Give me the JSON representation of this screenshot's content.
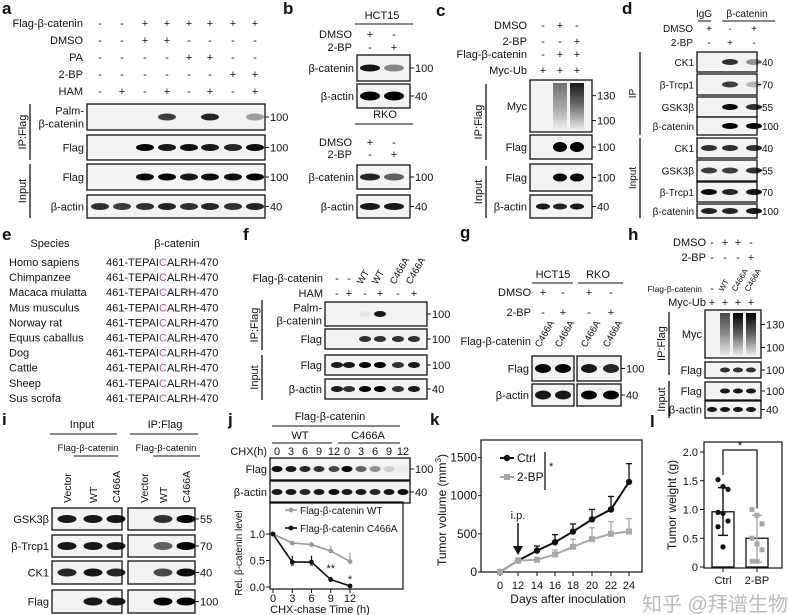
{
  "panels": {
    "a": {
      "label": "a",
      "conditions": [
        {
          "name": "Flag-β-catenin",
          "signs": [
            "-",
            "-",
            "+",
            "+",
            "+",
            "+",
            "+",
            "+"
          ]
        },
        {
          "name": "DMSO",
          "signs": [
            "-",
            "-",
            "+",
            "+",
            "-",
            "-",
            "-",
            "-"
          ]
        },
        {
          "name": "PA",
          "signs": [
            "-",
            "-",
            "-",
            "-",
            "+",
            "+",
            "-",
            "-"
          ]
        },
        {
          "name": "2-BP",
          "signs": [
            "-",
            "-",
            "-",
            "-",
            "-",
            "-",
            "+",
            "+"
          ]
        },
        {
          "name": "HAM",
          "signs": [
            "-",
            "+",
            "-",
            "+",
            "-",
            "+",
            "-",
            "+"
          ]
        }
      ],
      "groups": [
        "IP:Flag",
        "Input"
      ],
      "blots": [
        {
          "label": [
            "Palm-",
            "β-catenin"
          ],
          "marker": "100",
          "bands": [
            0,
            0,
            0,
            0.75,
            0,
            0.85,
            0,
            0.35
          ]
        },
        {
          "label": [
            "Flag"
          ],
          "marker": "100",
          "bands": [
            0,
            0,
            1,
            0.9,
            0.95,
            0.9,
            0.85,
            0.95
          ]
        },
        {
          "label": [
            "Flag"
          ],
          "marker": "100",
          "bands": [
            0,
            0,
            0.95,
            1,
            0.9,
            0.95,
            0.95,
            1
          ]
        },
        {
          "label": [
            "β-actin"
          ],
          "marker": "40",
          "bands": [
            0.8,
            0.75,
            0.8,
            0.85,
            0.8,
            0.85,
            0.8,
            0.85
          ]
        }
      ]
    },
    "b": {
      "label": "b",
      "cells": [
        {
          "header": "HCT15",
          "conditions": [
            {
              "name": "DMSO",
              "signs": [
                "+",
                "-"
              ]
            },
            {
              "name": "2-BP",
              "signs": [
                "-",
                "+"
              ]
            }
          ],
          "blots": [
            {
              "label": [
                "β-catenin"
              ],
              "marker": "100",
              "bands": [
                0.9,
                0.45
              ]
            },
            {
              "label": [
                "β-actin"
              ],
              "marker": "40",
              "bands": [
                1,
                1
              ]
            }
          ]
        },
        {
          "header": "RKO",
          "conditions": [
            {
              "name": "DMSO",
              "signs": [
                "+",
                "-"
              ]
            },
            {
              "name": "2-BP",
              "signs": [
                "-",
                "+"
              ]
            }
          ],
          "blots": [
            {
              "label": [
                "β-catenin"
              ],
              "marker": "100",
              "bands": [
                0.85,
                0.6
              ]
            },
            {
              "label": [
                "β-actin"
              ],
              "marker": "40",
              "bands": [
                0.9,
                0.9
              ]
            }
          ]
        }
      ]
    },
    "c": {
      "label": "c",
      "conditions": [
        {
          "name": "DMSO",
          "signs": [
            "-",
            "+",
            "-"
          ]
        },
        {
          "name": "2-BP",
          "signs": [
            "-",
            "-",
            "+"
          ]
        },
        {
          "name": "Flag-β-catenin",
          "signs": [
            "-",
            "+",
            "+"
          ]
        },
        {
          "name": "Myc-Ub",
          "signs": [
            "+",
            "+",
            "+"
          ]
        }
      ],
      "groups": [
        "IP:Flag",
        "Input"
      ],
      "blots": [
        {
          "label": [
            "Myc"
          ],
          "markers": [
            "130",
            "100"
          ],
          "smear": [
            0,
            0.55,
            0.9
          ]
        },
        {
          "label": [
            "Flag"
          ],
          "marker": "100",
          "bands": [
            0,
            1,
            1
          ]
        },
        {
          "label": [
            "Flag"
          ],
          "marker": "100",
          "bands": [
            0,
            1,
            1
          ]
        },
        {
          "label": [
            "β-actin"
          ],
          "marker": "40",
          "bands": [
            0.9,
            0.85,
            0.9
          ]
        }
      ]
    },
    "d": {
      "label": "d",
      "headers": [
        "IgG",
        "β-catenin"
      ],
      "conditions": [
        {
          "name": "DMSO",
          "signs": [
            "+",
            "-",
            "+"
          ]
        },
        {
          "name": "2-BP",
          "signs": [
            "-",
            "+",
            "-"
          ]
        }
      ],
      "groups": [
        "IP",
        "Input"
      ],
      "blots": [
        {
          "label": [
            "CK1"
          ],
          "marker": "40",
          "bands": [
            0,
            0.8,
            0.4
          ]
        },
        {
          "label": [
            "β-Trcp1"
          ],
          "marker": "70",
          "bands": [
            0,
            0.75,
            0.25
          ]
        },
        {
          "label": [
            "GSK3β"
          ],
          "marker": "55",
          "bands": [
            0,
            1,
            0.8
          ]
        },
        {
          "label": [
            "β-catenin"
          ],
          "marker": "100",
          "bands": [
            0,
            1,
            1
          ]
        },
        {
          "label": [
            "CK1"
          ],
          "marker": "40",
          "bands": [
            0.8,
            0.8,
            0.8
          ]
        },
        {
          "label": [
            "GSK3β"
          ],
          "marker": "55",
          "bands": [
            0.75,
            0.75,
            0.8
          ]
        },
        {
          "label": [
            "β-Trcp1"
          ],
          "marker": "70",
          "bands": [
            0.95,
            0.85,
            0.9
          ]
        },
        {
          "label": [
            "β-catenin"
          ],
          "marker": "100",
          "bands": [
            0.85,
            0.85,
            0.9
          ]
        }
      ]
    },
    "e": {
      "label": "e",
      "headers": [
        "Species",
        "β-catenin"
      ],
      "highlight_color": "#c0509a",
      "rows": [
        {
          "species": "Homo sapiens",
          "prefix": "461-TEPAI",
          "residue": "C",
          "suffix": "ALRH-470"
        },
        {
          "species": "Chimpanzee",
          "prefix": "461-TEPAI",
          "residue": "C",
          "suffix": "ALRH-470"
        },
        {
          "species": "Macaca mulatta",
          "prefix": "461-TEPAI",
          "residue": "C",
          "suffix": "ALRH-470"
        },
        {
          "species": "Mus musculus",
          "prefix": "461-TEPAI",
          "residue": "C",
          "suffix": "ALRH-470"
        },
        {
          "species": "Norway rat",
          "prefix": "461-TEPAI",
          "residue": "C",
          "suffix": "ALRH-470"
        },
        {
          "species": "Equus caballus",
          "prefix": "461-TEPAI",
          "residue": "C",
          "suffix": "ALRH-470"
        },
        {
          "species": "Dog",
          "prefix": "461-TEPAI",
          "residue": "C",
          "suffix": "ALRH-470"
        },
        {
          "species": "Cattle",
          "prefix": "461-TEPAI",
          "residue": "C",
          "suffix": "ALRH-470"
        },
        {
          "species": "Sheep",
          "prefix": "461-TEPAI",
          "residue": "C",
          "suffix": "ALRH-470"
        },
        {
          "species": "Sus scrofa",
          "prefix": "461-TEPAI",
          "residue": "C",
          "suffix": "ALRH-470"
        }
      ]
    },
    "f": {
      "label": "f",
      "conditions": [
        {
          "name": "Flag-β-catenin",
          "signs": [
            "-",
            "-",
            "WT",
            "WT",
            "C466A",
            "C466A"
          ]
        },
        {
          "name": "HAM",
          "signs": [
            "-",
            "+",
            "-",
            "+",
            "-",
            "+"
          ]
        }
      ],
      "groups": [
        "IP:Flag",
        "Input"
      ],
      "blots": [
        {
          "label": [
            "Palm-",
            "β-catenin"
          ],
          "marker": "100",
          "bands": [
            0,
            0,
            0.05,
            0.9,
            0,
            0
          ]
        },
        {
          "label": [
            "Flag"
          ],
          "marker": "100",
          "bands": [
            0,
            0,
            0.8,
            0.8,
            0.8,
            0.8
          ]
        },
        {
          "label": [
            "Flag"
          ],
          "marker": "100",
          "bands": [
            0.9,
            0.9,
            1,
            1,
            0.8,
            0.9
          ]
        },
        {
          "label": [
            "β-actin"
          ],
          "marker": "40",
          "bands": [
            0.9,
            0.8,
            1,
            1,
            0.8,
            0.9
          ]
        }
      ]
    },
    "g": {
      "label": "g",
      "headers": [
        "HCT15",
        "RKO"
      ],
      "conditions": [
        {
          "name": "DMSO",
          "signs": [
            "+",
            "-",
            "+",
            "-"
          ]
        },
        {
          "name": "2-BP",
          "signs": [
            "-",
            "+",
            "-",
            "+"
          ]
        },
        {
          "name": "Flag-β-catenin",
          "signs": [
            "C466A",
            "C466A",
            "C466A",
            "C466A"
          ]
        }
      ],
      "blots": [
        {
          "label": [
            "Flag"
          ],
          "marker": "100",
          "bands": [
            1,
            1,
            0.9,
            0.85
          ]
        },
        {
          "label": [
            "β-actin"
          ],
          "marker": "40",
          "bands": [
            0.9,
            0.9,
            1,
            1
          ]
        }
      ]
    },
    "h": {
      "label": "h",
      "conditions": [
        {
          "name": "DMSO",
          "signs": [
            "-",
            "+",
            "+",
            "-"
          ]
        },
        {
          "name": "2-BP",
          "signs": [
            "-",
            "-",
            "-",
            "+"
          ]
        },
        {
          "name": "Flag-β-catenin",
          "signs": [
            "-",
            "WT",
            "C466A",
            "C466A"
          ]
        },
        {
          "name": "Myc-Ub",
          "signs": [
            "+",
            "+",
            "+",
            "+"
          ]
        }
      ],
      "groups": [
        "IP:Flag",
        "Input"
      ],
      "blots": [
        {
          "label": [
            "Myc"
          ],
          "markers": [
            "130",
            "100"
          ],
          "smear": [
            0,
            0.7,
            1,
            1
          ]
        },
        {
          "label": [
            "Flag"
          ],
          "marker": "100",
          "bands": [
            0,
            0.8,
            0.8,
            0.8
          ]
        },
        {
          "label": [
            "Flag"
          ],
          "marker": "100",
          "bands": [
            0,
            0.9,
            0.9,
            0.9
          ]
        },
        {
          "label": [
            "β-actin"
          ],
          "marker": "40",
          "bands": [
            0.9,
            0.9,
            0.9,
            0.9
          ]
        }
      ]
    },
    "i": {
      "label": "i",
      "headers": [
        "Input",
        "IP:Flag"
      ],
      "subheaders": [
        "Flag-β-catenin",
        "Flag-β-catenin"
      ],
      "lanes": [
        "Vector",
        "WT",
        "C466A",
        "Vector",
        "WT",
        "C466A"
      ],
      "blots": [
        {
          "label": [
            "GSK3β"
          ],
          "marker": "55",
          "bands": [
            0.9,
            0.9,
            0.9,
            0,
            0.8,
            1
          ]
        },
        {
          "label": [
            "β-Trcp1"
          ],
          "marker": "70",
          "bands": [
            0.9,
            0.9,
            0.9,
            0,
            0.6,
            1
          ]
        },
        {
          "label": [
            "CK1"
          ],
          "marker": "40",
          "bands": [
            0.85,
            0.9,
            0.85,
            0,
            0.7,
            0.95
          ]
        },
        {
          "label": [
            "Flag"
          ],
          "marker": "100",
          "bands": [
            0,
            0.9,
            0.9,
            0,
            1,
            1
          ]
        }
      ]
    },
    "j": {
      "label": "j",
      "header": "Flag-β-catenin",
      "groups": [
        "WT",
        "C466A"
      ],
      "time_label": "CHX(h)",
      "times": [
        "0",
        "3",
        "6",
        "9",
        "12",
        "0",
        "3",
        "6",
        "9",
        "12"
      ],
      "blots": [
        {
          "label": [
            "Flag"
          ],
          "marker": "100",
          "bands": [
            0.95,
            0.9,
            0.85,
            0.8,
            0.7,
            1,
            0.6,
            0.4,
            0.15,
            0.03
          ]
        },
        {
          "label": [
            "β-actin"
          ],
          "marker": "40",
          "bands": [
            0.9,
            0.9,
            0.85,
            0.9,
            0.95,
            0.9,
            0.9,
            0.85,
            0.9,
            0.95
          ]
        }
      ]
    },
    "k": {
      "label": "k"
    },
    "l": {
      "label": "l"
    }
  },
  "watermark": "知乎 @拜谱生物",
  "chart_data": [
    {
      "type": "line",
      "title": "",
      "xlabel": "CHX-chase Time (h)",
      "ylabel": "Rel. β-catenin level",
      "x": [
        0,
        3,
        6,
        9,
        12
      ],
      "xticks": [
        "0",
        "3",
        "6",
        "9",
        "12"
      ],
      "yticks": [
        "0.0",
        "0.5",
        "1.0"
      ],
      "xlim": [
        0,
        12
      ],
      "ylim": [
        0,
        1.6
      ],
      "legend": "top-right",
      "series": [
        {
          "name": "Flag-β-catenin WT",
          "color": "#9a9a9a",
          "values": [
            1.0,
            0.83,
            0.8,
            0.68,
            0.48
          ],
          "errors": [
            0,
            0.03,
            0.05,
            0.1,
            0.17
          ]
        },
        {
          "name": "Flag-β-catenin C466A",
          "color": "#111111",
          "values": [
            1.0,
            0.47,
            0.47,
            0.14,
            0.02
          ],
          "errors": [
            0,
            0.12,
            0.12,
            0.05,
            0.01
          ]
        }
      ],
      "annotations": [
        {
          "x": 3,
          "text": "*"
        },
        {
          "x": 6,
          "text": "*"
        },
        {
          "x": 9,
          "text": "**"
        },
        {
          "x": 12,
          "text": "*"
        }
      ]
    },
    {
      "type": "line",
      "title": "",
      "xlabel": "Days after inoculation",
      "ylabel": "Tumor volume (mm",
      "ylabel_sup": "3",
      "ylabel_end": ")",
      "x": [
        0,
        12,
        14,
        16,
        18,
        20,
        22,
        24
      ],
      "xticks": [
        "0",
        "12",
        "14",
        "16",
        "18",
        "20",
        "22",
        "24"
      ],
      "yticks": [
        "0",
        "500",
        "1000",
        "1500"
      ],
      "ylim": [
        0,
        1700
      ],
      "legend": "top-left",
      "series": [
        {
          "name": "Ctrl",
          "color": "#111111",
          "marker": "circle",
          "values": [
            0,
            150,
            280,
            390,
            530,
            690,
            820,
            1180
          ],
          "errors": [
            0,
            30,
            60,
            100,
            100,
            130,
            170,
            240
          ]
        },
        {
          "name": "2-BP",
          "color": "#a8a8a8",
          "marker": "square",
          "values": [
            0,
            150,
            160,
            230,
            330,
            430,
            500,
            530
          ],
          "errors": [
            0,
            20,
            30,
            60,
            100,
            150,
            160,
            170
          ]
        }
      ],
      "significance": "*",
      "annotation": "i.p.",
      "annotation_x": 12
    },
    {
      "type": "bar",
      "title": "",
      "xlabel": "",
      "ylabel": "Tumor weight (g)",
      "categories": [
        "Ctrl",
        "2-BP"
      ],
      "values": [
        0.96,
        0.5
      ],
      "errors": [
        [
          0.55,
          1.38
        ],
        [
          0.08,
          0.9
        ]
      ],
      "points": [
        [
          1.52,
          1.4,
          1.35,
          0.95,
          0.93,
          0.8,
          0.7,
          0.35
        ],
        [
          1.0,
          0.9,
          0.75,
          0.5,
          0.4,
          0.3,
          0.1,
          0.1
        ]
      ],
      "colors": [
        "#111111",
        "#a8a8a8"
      ],
      "yticks": [
        "0",
        "0.5",
        "1.0",
        "1.5",
        "2.0"
      ],
      "ylim": [
        0,
        2.0
      ],
      "significance": "*"
    }
  ]
}
